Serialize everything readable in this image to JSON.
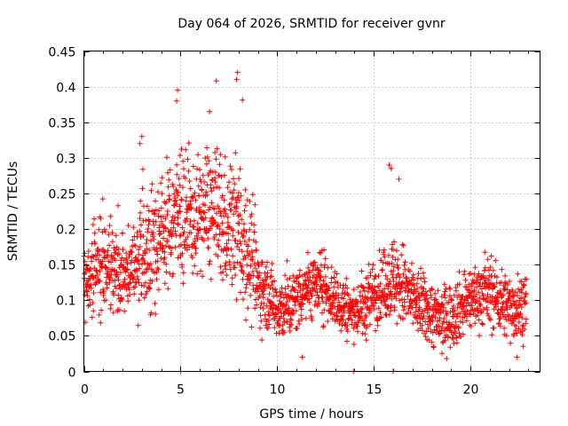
{
  "chart_data": {
    "type": "scatter",
    "title": "Day 064 of 2026, SRMTID for receiver gvnr",
    "xlabel": "GPS time / hours",
    "ylabel": "SRMTID / TECUs",
    "xlim": [
      0,
      23.6
    ],
    "ylim": [
      0,
      0.45
    ],
    "grid": true,
    "x_ticks": [
      0,
      5,
      10,
      15,
      20
    ],
    "x_tick_labels": [
      "0",
      "5",
      "10",
      "15",
      "20"
    ],
    "y_ticks": [
      0,
      0.05,
      0.1,
      0.15,
      0.2,
      0.25,
      0.3,
      0.35,
      0.4,
      0.45
    ],
    "y_tick_labels": [
      "0",
      "0.05",
      "0.1",
      "0.15",
      "0.2",
      "0.25",
      "0.3",
      "0.35",
      "0.4",
      "0.45"
    ],
    "marker": "+",
    "series": [
      {
        "name": "SRMTID",
        "color": "#ff0000",
        "envelope": {
          "note": "approximate local median and spread of the dense point cloud, read from the plot",
          "x": [
            0.0,
            0.5,
            1.0,
            1.5,
            2.0,
            2.5,
            3.0,
            3.5,
            4.0,
            4.5,
            5.0,
            5.5,
            6.0,
            6.5,
            7.0,
            7.5,
            8.0,
            8.5,
            9.0,
            9.5,
            10.0,
            10.5,
            11.0,
            11.5,
            12.0,
            12.5,
            13.0,
            13.5,
            14.0,
            14.5,
            15.0,
            15.5,
            16.0,
            16.5,
            17.0,
            17.5,
            18.0,
            18.5,
            19.0,
            19.5,
            20.0,
            20.5,
            21.0,
            21.5,
            22.0,
            22.5,
            22.9
          ],
          "median": [
            0.12,
            0.14,
            0.15,
            0.14,
            0.13,
            0.14,
            0.16,
            0.17,
            0.19,
            0.21,
            0.22,
            0.21,
            0.22,
            0.23,
            0.21,
            0.2,
            0.2,
            0.17,
            0.12,
            0.11,
            0.09,
            0.09,
            0.1,
            0.12,
            0.12,
            0.12,
            0.1,
            0.09,
            0.08,
            0.09,
            0.11,
            0.12,
            0.13,
            0.12,
            0.1,
            0.09,
            0.08,
            0.07,
            0.08,
            0.09,
            0.1,
            0.11,
            0.11,
            0.1,
            0.09,
            0.09,
            0.1
          ],
          "spread": [
            0.03,
            0.04,
            0.04,
            0.04,
            0.03,
            0.04,
            0.05,
            0.05,
            0.05,
            0.06,
            0.07,
            0.05,
            0.05,
            0.06,
            0.07,
            0.05,
            0.07,
            0.06,
            0.04,
            0.03,
            0.03,
            0.03,
            0.03,
            0.03,
            0.03,
            0.03,
            0.03,
            0.03,
            0.02,
            0.03,
            0.03,
            0.03,
            0.04,
            0.04,
            0.03,
            0.03,
            0.03,
            0.03,
            0.03,
            0.03,
            0.03,
            0.03,
            0.03,
            0.03,
            0.03,
            0.03,
            0.03
          ]
        },
        "notable_points": {
          "x": [
            4.8,
            4.85,
            7.95,
            7.9,
            6.5,
            3.0,
            2.9,
            11.3,
            15.8,
            15.9,
            16.3,
            22.4,
            5.0,
            13.95,
            16.0
          ],
          "y": [
            0.38,
            0.395,
            0.42,
            0.41,
            0.365,
            0.33,
            0.32,
            0.02,
            0.29,
            0.285,
            0.27,
            0.02,
            0.0,
            0.0,
            0.0
          ]
        }
      }
    ]
  }
}
